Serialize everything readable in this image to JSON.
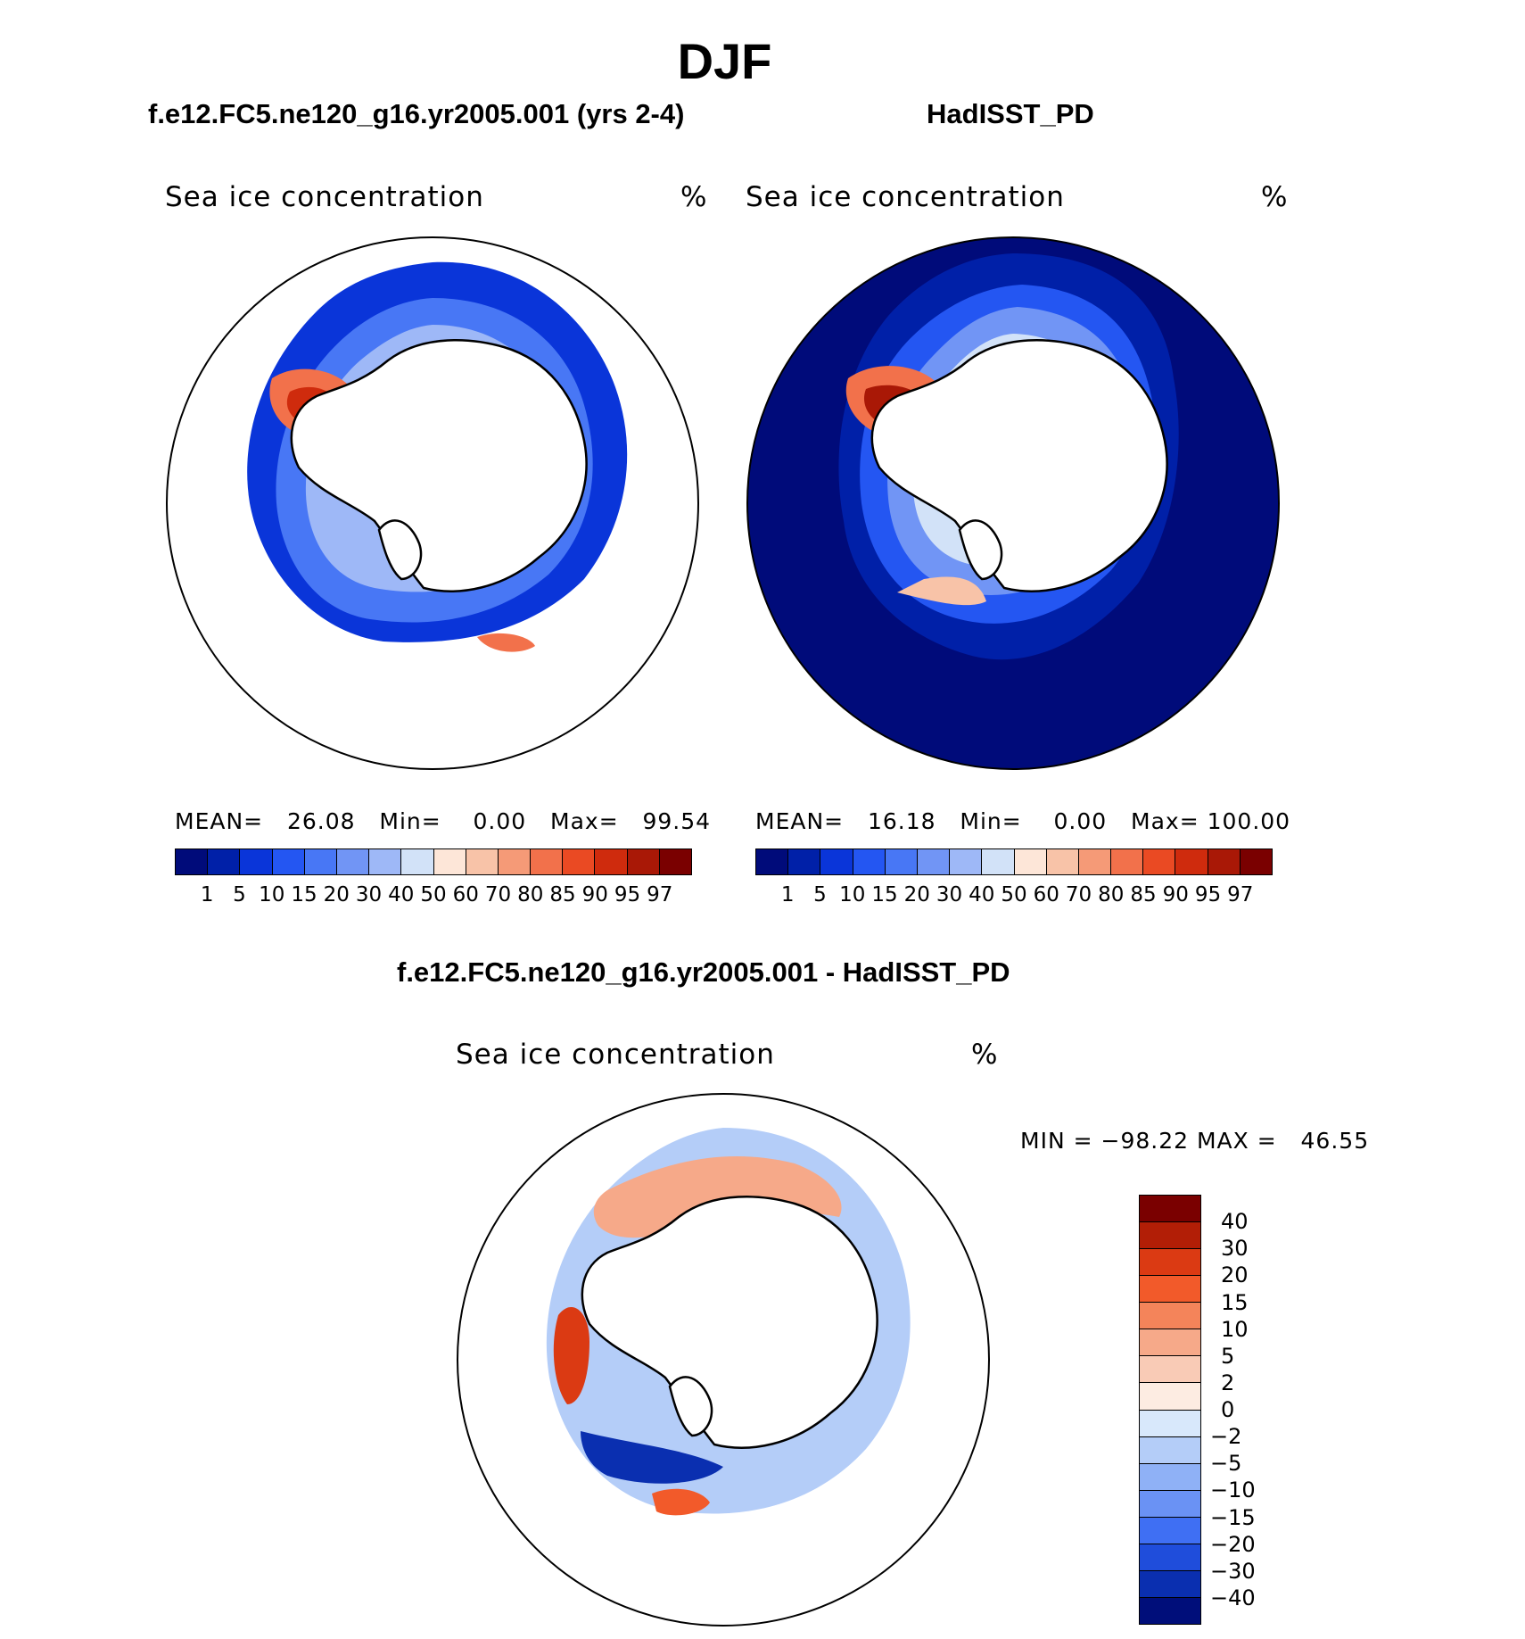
{
  "title": "DJF",
  "panel_left": {
    "case_title": "f.e12.FC5.ne120_g16.yr2005.001 (yrs 2-4)",
    "variable": "Sea ice concentration",
    "units": "%",
    "stats": {
      "mean_label": "MEAN=",
      "mean": "26.08",
      "min_label": "Min=",
      "min": "0.00",
      "max_label": "Max=",
      "max": "99.54"
    }
  },
  "panel_right": {
    "case_title": "HadISST_PD",
    "variable": "Sea ice concentration",
    "units": "%",
    "stats": {
      "mean_label": "MEAN=",
      "mean": "16.18",
      "min_label": "Min=",
      "min": "0.00",
      "max_label": "Max=",
      "max": "100.00"
    }
  },
  "panel_diff": {
    "case_title": "f.e12.FC5.ne120_g16.yr2005.001 - HadISST_PD",
    "variable": "Sea ice concentration",
    "units": "%",
    "minmax": {
      "min_label": "MIN =",
      "min": "−98.22",
      "max_label": "MAX =",
      "max": "46.55"
    }
  },
  "colorbar_main": {
    "ticks": [
      "1",
      "5",
      "10",
      "15",
      "20",
      "30",
      "40",
      "50",
      "60",
      "70",
      "80",
      "85",
      "90",
      "95",
      "97"
    ],
    "colors": [
      "#000b7a",
      "#0020a8",
      "#0a35d9",
      "#2456f2",
      "#4877f5",
      "#7195f5",
      "#9eb8f7",
      "#d2e2f8",
      "#fde6d8",
      "#f8c3a8",
      "#f59a77",
      "#f2714b",
      "#ea4a23",
      "#cf2b0d",
      "#a91806",
      "#7a0000"
    ]
  },
  "colorbar_diff": {
    "ticks": [
      "40",
      "30",
      "20",
      "15",
      "10",
      "5",
      "2",
      "0",
      "−2",
      "−5",
      "−10",
      "−15",
      "−20",
      "−30",
      "−40"
    ],
    "colors": [
      "#7a0000",
      "#b21e06",
      "#db3a13",
      "#f25a2a",
      "#f4845a",
      "#f6a989",
      "#f9cbb6",
      "#fdece2",
      "#d8e8fb",
      "#b4cdf8",
      "#8fb1f6",
      "#6a92f4",
      "#3f6ff3",
      "#1f4ddb",
      "#0a2fb0",
      "#000e7a"
    ]
  }
}
